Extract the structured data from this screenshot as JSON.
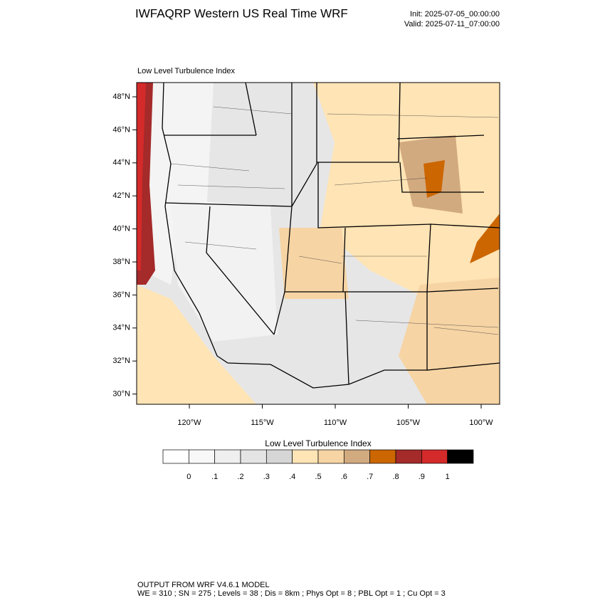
{
  "title": "IWFAQRP Western US Real Time WRF",
  "init": "Init: 2025-07-05_00:00:00",
  "valid": "Valid: 2025-07-11_07:00:00",
  "map": {
    "title": "Low Level Turbulence Index",
    "lat_labels": [
      "48°N",
      "46°N",
      "44°N",
      "42°N",
      "40°N",
      "38°N",
      "36°N",
      "34°N",
      "32°N",
      "30°N"
    ],
    "lon_labels": [
      "120°W",
      "115°W",
      "110°W",
      "105°W",
      "100°W"
    ]
  },
  "colorbar": {
    "title": "Low Level Turbulence Index",
    "colors": [
      "#ffffff",
      "#f8f8f8",
      "#efefef",
      "#e4e4e4",
      "#d6d6d6",
      "#ffe4b5",
      "#f6d4a4",
      "#d2aa80",
      "#cc6600",
      "#a52a2a",
      "#d42a2a",
      "#000000"
    ],
    "labels": [
      "0",
      ".1",
      ".2",
      ".3",
      ".4",
      ".5",
      ".6",
      ".7",
      ".8",
      ".9",
      "1"
    ]
  },
  "footer": {
    "line1": "OUTPUT FROM WRF V4.6.1 MODEL",
    "line2": "WE = 310 ; SN = 275 ; Levels = 38 ; Dis = 8km ; Phys Opt = 8 ; PBL Opt = 1 ; Cu Opt = 3"
  }
}
